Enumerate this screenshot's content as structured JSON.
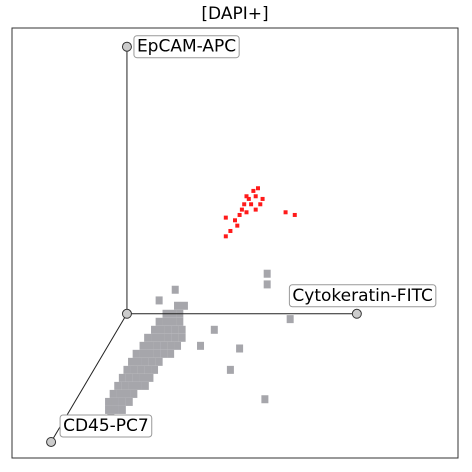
{
  "chart_data": {
    "type": "scatter",
    "title": "[DAPI+]",
    "xlim": [
      -50,
      144
    ],
    "ylim": [
      -54,
      107
    ],
    "origin": [
      0,
      0
    ],
    "axes": [
      {
        "label": "EpCAM-APC",
        "end": [
          0,
          100
        ]
      },
      {
        "label": "Cytokeratin-FITC",
        "end": [
          100,
          0
        ]
      },
      {
        "label": "CD45-PC7",
        "end": [
          -33,
          -48
        ]
      }
    ],
    "series": [
      {
        "color": "#a6a6ab",
        "x": [
          -8,
          -5,
          -2,
          -8,
          -5,
          -2,
          1,
          -6,
          -3,
          0,
          3,
          -4,
          -1,
          2,
          5,
          8,
          -2,
          1,
          4,
          7,
          10,
          0,
          3,
          6,
          9,
          12,
          2,
          5,
          8,
          11,
          14,
          4,
          7,
          10,
          13,
          16,
          19,
          7,
          10,
          13,
          16,
          19,
          22,
          9,
          12,
          15,
          18,
          21,
          24,
          12,
          15,
          18,
          21,
          24,
          14,
          17,
          20,
          23,
          17,
          20,
          23,
          22,
          25,
          -7,
          61,
          61,
          71,
          38,
          60,
          45,
          32,
          21,
          14,
          49
        ],
        "y": [
          -36,
          -36,
          -36,
          -33,
          -33,
          -33,
          -33,
          -30,
          -30,
          -30,
          -30,
          -27,
          -27,
          -27,
          -27,
          -27,
          -24,
          -24,
          -24,
          -24,
          -24,
          -21,
          -21,
          -21,
          -21,
          -21,
          -18,
          -18,
          -18,
          -18,
          -18,
          -15,
          -15,
          -15,
          -15,
          -15,
          -15,
          -12,
          -12,
          -12,
          -12,
          -12,
          -12,
          -9,
          -9,
          -9,
          -9,
          -9,
          -9,
          -6,
          -6,
          -6,
          -6,
          -6,
          -3,
          -3,
          -3,
          -3,
          0,
          0,
          0,
          3,
          3,
          -39,
          15,
          11,
          -2,
          -6,
          -32,
          -21,
          -12,
          9,
          5,
          -13
        ]
      },
      {
        "color": "#ff1a1a",
        "x": [
          57,
          56,
          53,
          51,
          54,
          58,
          49,
          47,
          43,
          45,
          48,
          52,
          56,
          69,
          73,
          43,
          59,
          52,
          50,
          55
        ],
        "y": [
          47,
          44,
          43,
          41,
          41,
          41,
          37,
          35,
          36,
          31,
          33,
          38,
          39,
          38,
          37,
          29,
          43,
          44,
          39,
          46
        ]
      }
    ]
  }
}
